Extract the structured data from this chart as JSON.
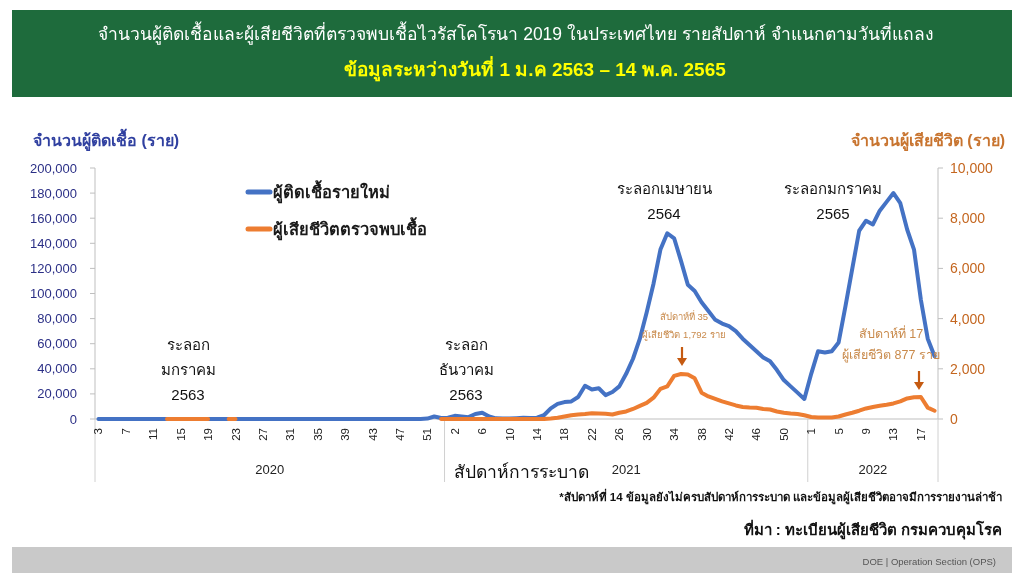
{
  "chart_data": {
    "type": "line",
    "title": "จำนวนผู้ติดเชื้อและผู้เสียชีวิตที่ตรวจพบเชื้อไวรัสโคโรนา 2019 ในประเทศไทย รายสัปดาห์ จำแนกตามวันที่แถลง",
    "subtitle": "ข้อมูลระหว่างวันที่ 1 ม.ค 2563 – 14 พ.ค. 2565",
    "xlabel": "สัปดาห์การระบาด",
    "ylabel": "จำนวนผู้ติดเชื้อ (ราย)",
    "y2label": "จำนวนผู้เสียชีวิต (ราย)",
    "categories": [
      "3",
      null,
      null,
      null,
      "7",
      null,
      null,
      null,
      "11",
      null,
      null,
      null,
      "15",
      null,
      null,
      null,
      "19",
      null,
      null,
      null,
      "23",
      null,
      null,
      null,
      "27",
      null,
      null,
      null,
      "31",
      null,
      null,
      null,
      "35",
      null,
      null,
      null,
      "39",
      null,
      null,
      null,
      "43",
      null,
      null,
      null,
      "47",
      null,
      null,
      null,
      "51",
      null,
      null,
      null,
      "2",
      null,
      null,
      null,
      "6",
      null,
      null,
      null,
      "10",
      null,
      null,
      null,
      "14",
      null,
      null,
      null,
      "18",
      null,
      null,
      null,
      "22",
      null,
      null,
      null,
      "26",
      null,
      null,
      null,
      "30",
      null,
      null,
      null,
      "34",
      null,
      null,
      null,
      "38",
      null,
      null,
      null,
      "42",
      null,
      null,
      null,
      "46",
      null,
      null,
      null,
      "50",
      null,
      null,
      null,
      "1",
      null,
      null,
      null,
      "5",
      null,
      null,
      null,
      "9",
      null,
      null,
      null,
      "13",
      null,
      null,
      null,
      "17",
      null,
      null
    ],
    "series": [
      {
        "name": "ผู้ติดเชื้อรายใหม่",
        "color": "#4472c4",
        "values": [
          0,
          0,
          0,
          0,
          0,
          0,
          0,
          0,
          0,
          0,
          0,
          null,
          null,
          null,
          null,
          null,
          0,
          0,
          0,
          0,
          0,
          0,
          0,
          0,
          0,
          0,
          0,
          0,
          0,
          0,
          0,
          0,
          0,
          0,
          0,
          0,
          0,
          0,
          0,
          0,
          0,
          0,
          0,
          0,
          0,
          0,
          0,
          0,
          300,
          2000,
          800,
          1000,
          2500,
          2000,
          1500,
          4000,
          5000,
          2000,
          500,
          300,
          300,
          600,
          1000,
          800,
          1000,
          3000,
          8500,
          12000,
          13500,
          14000,
          17500,
          26500,
          23500,
          24500,
          19000,
          21500,
          26000,
          36000,
          48000,
          64000,
          85000,
          108000,
          135000,
          148000,
          144000,
          126000,
          107000,
          102000,
          93000,
          86000,
          79000,
          76000,
          74000,
          70000,
          64000,
          59000,
          54000,
          49000,
          46000,
          39000,
          31000,
          26000,
          21000,
          16000,
          36000,
          54000,
          53000,
          54000,
          61000,
          90000,
          120000,
          150000,
          158000,
          155000,
          166000,
          173000,
          180000,
          172000,
          151000,
          135000,
          95000,
          64000,
          50000
        ]
      },
      {
        "name": "ผู้เสียชีวิตตรวจพบเชื้อ",
        "color": "#ed7d31",
        "axis": "y2",
        "values": [
          null,
          null,
          null,
          null,
          null,
          null,
          null,
          null,
          null,
          null,
          0,
          0,
          0,
          0,
          0,
          0,
          0,
          null,
          null,
          0,
          0,
          null,
          null,
          null,
          null,
          null,
          null,
          null,
          null,
          null,
          null,
          null,
          null,
          null,
          null,
          null,
          null,
          null,
          null,
          null,
          null,
          null,
          null,
          null,
          null,
          null,
          null,
          null,
          null,
          null,
          0,
          0,
          0,
          0,
          0,
          0,
          0,
          0,
          0,
          0,
          0,
          0,
          0,
          0,
          0,
          0,
          20,
          50,
          100,
          150,
          180,
          200,
          230,
          220,
          210,
          180,
          250,
          300,
          400,
          520,
          640,
          850,
          1200,
          1300,
          1720,
          1792,
          1770,
          1620,
          1050,
          900,
          800,
          700,
          620,
          540,
          480,
          460,
          450,
          400,
          380,
          300,
          250,
          220,
          200,
          150,
          80,
          60,
          60,
          60,
          100,
          180,
          250,
          330,
          420,
          480,
          530,
          570,
          620,
          700,
          820,
          870,
          877,
          450,
          330
        ]
      }
    ],
    "ylim": [
      0,
      200000
    ],
    "yticks": [
      0,
      {
        "value": 20000,
        "label": "20,000"
      },
      {
        "value": 40000,
        "label": "40,000"
      },
      {
        "value": 60000,
        "label": "60,000"
      },
      {
        "value": 80000,
        "label": "80,000"
      },
      {
        "value": 100000,
        "label": "100,000"
      },
      {
        "value": 120000,
        "label": "120,000"
      },
      {
        "value": 140000,
        "label": "140,000"
      },
      {
        "value": 160000,
        "label": "160,000"
      },
      {
        "value": 180000,
        "label": "180,000"
      },
      {
        "value": 200000,
        "label": "200,000"
      }
    ],
    "y2lim": [
      0,
      10000
    ],
    "y2ticks": [
      0,
      {
        "value": 2000,
        "label": "2,000"
      },
      {
        "value": 4000,
        "label": "4,000"
      },
      {
        "value": 6000,
        "label": "6,000"
      },
      {
        "value": 8000,
        "label": "8,000"
      },
      {
        "value": 10000,
        "label": "10,000"
      }
    ],
    "legend": "top left",
    "annotations": [
      "ระลอก\nมกราคม\n2563",
      "ระลอก\nธันวาคม\n2563",
      "ระลอกเมษายน\n2564",
      "ระลอกมกราคม\n2565",
      "สัปดาห์ที่ 35\nผู้เสียชีวิต 1,792 ราย",
      "สัปดาห์ที่ 17\nผู้เสียชีวิต 877 ราย",
      "2020",
      "2021",
      "2022",
      "*สัปดาห์ที่ 14 ข้อมูลยังไม่ครบสัปดาห์การระบาด และข้อมูลผู้เสียชีวิตอาจมีการรายงานล่าช้า",
      "ที่มา : ทะเบียนผู้เสียชีวิต กรมควบคุมโรค",
      "DOE | Operation Section (OPS)"
    ]
  }
}
